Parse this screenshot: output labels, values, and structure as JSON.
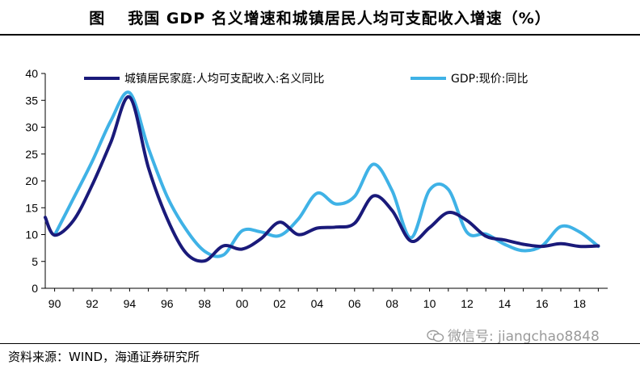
{
  "header": {
    "prefix": "图",
    "title": "我国 GDP 名义增速和城镇居民人均可支配收入增速（%）"
  },
  "footer": {
    "source": "资料来源：WIND，海通证券研究所",
    "watermark": "微信号: jiangchao8848",
    "watermark_icon": "wechat-icon"
  },
  "chart_data": {
    "type": "line",
    "title": "我国 GDP 名义增速和城镇居民人均可支配收入增速（%）",
    "xlabel": "",
    "ylabel": "",
    "xlim": [
      1989.5,
      2019.5
    ],
    "ylim": [
      0,
      40
    ],
    "yticks": [
      0,
      5,
      10,
      15,
      20,
      25,
      30,
      35,
      40
    ],
    "xticks": [
      {
        "year": 1990,
        "label": "90"
      },
      {
        "year": 1992,
        "label": "92"
      },
      {
        "year": 1994,
        "label": "94"
      },
      {
        "year": 1996,
        "label": "96"
      },
      {
        "year": 1998,
        "label": "98"
      },
      {
        "year": 2000,
        "label": "00"
      },
      {
        "year": 2002,
        "label": "02"
      },
      {
        "year": 2004,
        "label": "04"
      },
      {
        "year": 2006,
        "label": "06"
      },
      {
        "year": 2008,
        "label": "08"
      },
      {
        "year": 2010,
        "label": "10"
      },
      {
        "year": 2012,
        "label": "12"
      },
      {
        "year": 2014,
        "label": "14"
      },
      {
        "year": 2016,
        "label": "16"
      },
      {
        "year": 2018,
        "label": "18"
      }
    ],
    "grid": false,
    "legend_position": "top",
    "series": [
      {
        "name": "城镇居民家庭:人均可支配收入:名义同比",
        "color": "#1a1a7a",
        "x": [
          1989.5,
          1990,
          1991,
          1992,
          1993,
          1994,
          1995,
          1996,
          1997,
          1998,
          1999,
          2000,
          2001,
          2002,
          2003,
          2004,
          2005,
          2006,
          2007,
          2008,
          2009,
          2010,
          2011,
          2012,
          2013,
          2014,
          2015,
          2016,
          2017,
          2018,
          2019
        ],
        "values": [
          13.2,
          9.9,
          12.6,
          19.2,
          27.2,
          35.6,
          22.5,
          13.0,
          6.6,
          5.1,
          7.9,
          7.3,
          9.2,
          12.3,
          10.0,
          11.2,
          11.4,
          12.1,
          17.2,
          14.5,
          8.8,
          11.3,
          14.1,
          12.6,
          9.7,
          9.0,
          8.2,
          7.8,
          8.3,
          7.8,
          7.9
        ],
        "line_width": 4
      },
      {
        "name": "GDP:现价:同比",
        "color": "#3fb2e6",
        "x": [
          1990,
          1991,
          1992,
          1993,
          1994,
          1995,
          1996,
          1997,
          1998,
          1999,
          2000,
          2001,
          2002,
          2003,
          2004,
          2005,
          2006,
          2007,
          2008,
          2009,
          2010,
          2011,
          2012,
          2013,
          2014,
          2015,
          2016,
          2017,
          2018,
          2019
        ],
        "values": [
          9.9,
          16.7,
          23.6,
          31.2,
          36.4,
          26.1,
          17.1,
          11.0,
          6.9,
          6.2,
          10.7,
          10.5,
          9.8,
          12.9,
          17.7,
          15.7,
          17.1,
          23.1,
          18.2,
          9.4,
          18.3,
          18.4,
          10.4,
          10.1,
          8.2,
          7.0,
          7.9,
          11.5,
          10.5,
          7.8
        ],
        "line_width": 4
      }
    ]
  }
}
